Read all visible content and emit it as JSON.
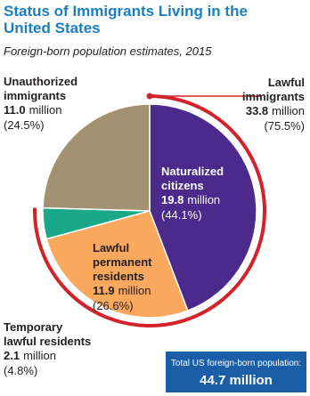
{
  "chart_data": {
    "type": "pie",
    "title": [
      "Status of Immigrants Living in the",
      "United States"
    ],
    "subtitle": "Foreign-born population estimates, 2015",
    "unit": "million",
    "categories": [
      [
        "Naturalized",
        "citizens"
      ],
      [
        "Lawful",
        "permanent",
        "residents"
      ],
      [
        "Temporary",
        "lawful residents"
      ],
      [
        "Unauthorized",
        "immigrants"
      ]
    ],
    "values": [
      19.8,
      11.9,
      2.1,
      11.0
    ],
    "value_labels": [
      "19.8",
      "11.9",
      "2.1",
      "11.0"
    ],
    "percent_labels": [
      "(44.1%)",
      "(26.6%)",
      "(4.8%)",
      "(24.5%)"
    ],
    "colors": [
      "#4b2a8c",
      "#f9a85e",
      "#1aa88a",
      "#a39271"
    ],
    "group": {
      "name": [
        "Lawful",
        "immigrants"
      ],
      "value": 33.8,
      "value_label": "33.8",
      "percent_label": "(75.5%)",
      "color": "#d2232a",
      "members": [
        0,
        1,
        2
      ]
    },
    "total": {
      "label": "Total US foreign-born population:",
      "value": 44.7,
      "value_label": "44.7 million"
    }
  }
}
